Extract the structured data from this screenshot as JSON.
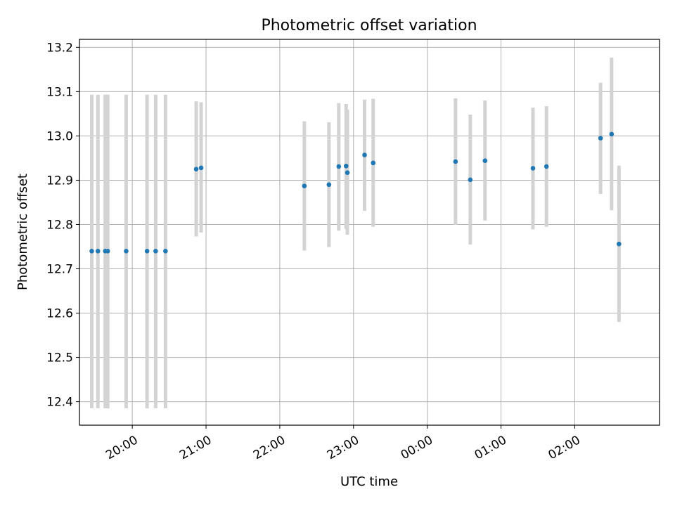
{
  "chart_data": {
    "type": "scatter",
    "title": "Photometric offset variation",
    "xlabel": "UTC time",
    "ylabel": "Photometric offset",
    "x_axis_type": "time",
    "xlim": [
      "19:17",
      "03:09"
    ],
    "ylim": [
      12.347,
      13.218
    ],
    "x_ticks": [
      "20:00",
      "21:00",
      "22:00",
      "23:00",
      "00:00",
      "01:00",
      "02:00"
    ],
    "y_ticks": [
      "12.4",
      "12.5",
      "12.6",
      "12.7",
      "12.8",
      "12.9",
      "13.0",
      "13.1",
      "13.2"
    ],
    "grid": true,
    "legend": "none",
    "colors": {
      "point": "#1f77b4",
      "errorbar": "#d3d3d3",
      "grid": "#b0b0b0"
    },
    "points": [
      {
        "x": "19:27",
        "y": 12.74,
        "yerr_low": 12.385,
        "yerr_high": 13.093
      },
      {
        "x": "19:32",
        "y": 12.74,
        "yerr_low": 12.385,
        "yerr_high": 13.093
      },
      {
        "x": "19:38",
        "y": 12.74,
        "yerr_low": 12.385,
        "yerr_high": 13.093
      },
      {
        "x": "19:40",
        "y": 12.74,
        "yerr_low": 12.385,
        "yerr_high": 13.093
      },
      {
        "x": "19:55",
        "y": 12.74,
        "yerr_low": 12.385,
        "yerr_high": 13.093
      },
      {
        "x": "20:12",
        "y": 12.74,
        "yerr_low": 12.385,
        "yerr_high": 13.093
      },
      {
        "x": "20:19",
        "y": 12.74,
        "yerr_low": 12.385,
        "yerr_high": 13.093
      },
      {
        "x": "20:27",
        "y": 12.74,
        "yerr_low": 12.385,
        "yerr_high": 13.093
      },
      {
        "x": "20:52",
        "y": 12.925,
        "yerr_low": 12.773,
        "yerr_high": 13.078
      },
      {
        "x": "20:56",
        "y": 12.928,
        "yerr_low": 12.782,
        "yerr_high": 13.076
      },
      {
        "x": "22:20",
        "y": 12.887,
        "yerr_low": 12.741,
        "yerr_high": 13.033
      },
      {
        "x": "22:40",
        "y": 12.89,
        "yerr_low": 12.749,
        "yerr_high": 13.031
      },
      {
        "x": "22:48",
        "y": 12.931,
        "yerr_low": 12.786,
        "yerr_high": 13.074
      },
      {
        "x": "22:54",
        "y": 12.932,
        "yerr_low": 12.79,
        "yerr_high": 13.072
      },
      {
        "x": "22:55",
        "y": 12.917,
        "yerr_low": 12.777,
        "yerr_high": 13.059
      },
      {
        "x": "23:09",
        "y": 12.957,
        "yerr_low": 12.831,
        "yerr_high": 13.082
      },
      {
        "x": "23:16",
        "y": 12.939,
        "yerr_low": 12.795,
        "yerr_high": 13.084
      },
      {
        "x": "00:23",
        "y": 12.942,
        "yerr_low": 12.799,
        "yerr_high": 13.085
      },
      {
        "x": "00:35",
        "y": 12.901,
        "yerr_low": 12.755,
        "yerr_high": 13.048
      },
      {
        "x": "00:47",
        "y": 12.944,
        "yerr_low": 12.809,
        "yerr_high": 13.08
      },
      {
        "x": "01:26",
        "y": 12.927,
        "yerr_low": 12.789,
        "yerr_high": 13.064
      },
      {
        "x": "01:37",
        "y": 12.931,
        "yerr_low": 12.795,
        "yerr_high": 13.067
      },
      {
        "x": "02:21",
        "y": 12.995,
        "yerr_low": 12.869,
        "yerr_high": 13.12
      },
      {
        "x": "02:30",
        "y": 13.004,
        "yerr_low": 12.832,
        "yerr_high": 13.177
      },
      {
        "x": "02:36",
        "y": 12.756,
        "yerr_low": 12.58,
        "yerr_high": 12.933
      }
    ]
  }
}
